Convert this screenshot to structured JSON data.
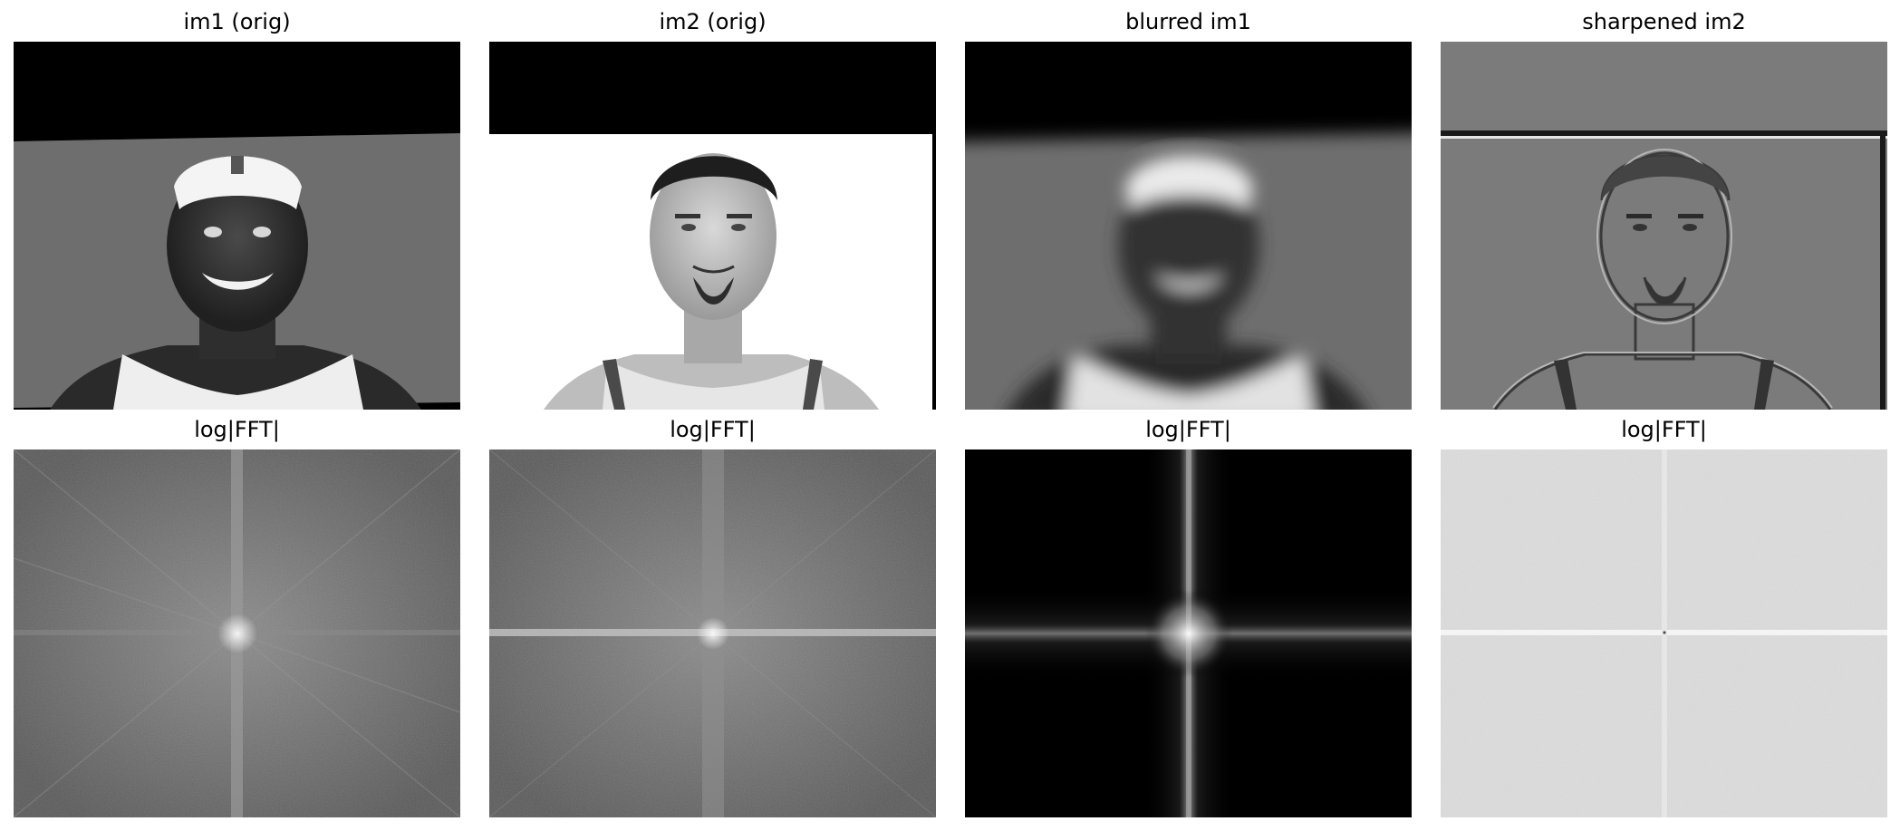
{
  "figure": {
    "panels": [
      {
        "title": "im1 (orig)"
      },
      {
        "title": "im2 (orig)"
      },
      {
        "title": "blurred im1"
      },
      {
        "title": "sharpened im2"
      },
      {
        "title": "log|FFT|"
      },
      {
        "title": "log|FFT|"
      },
      {
        "title": "log|FFT|"
      },
      {
        "title": "log|FFT|"
      }
    ]
  }
}
